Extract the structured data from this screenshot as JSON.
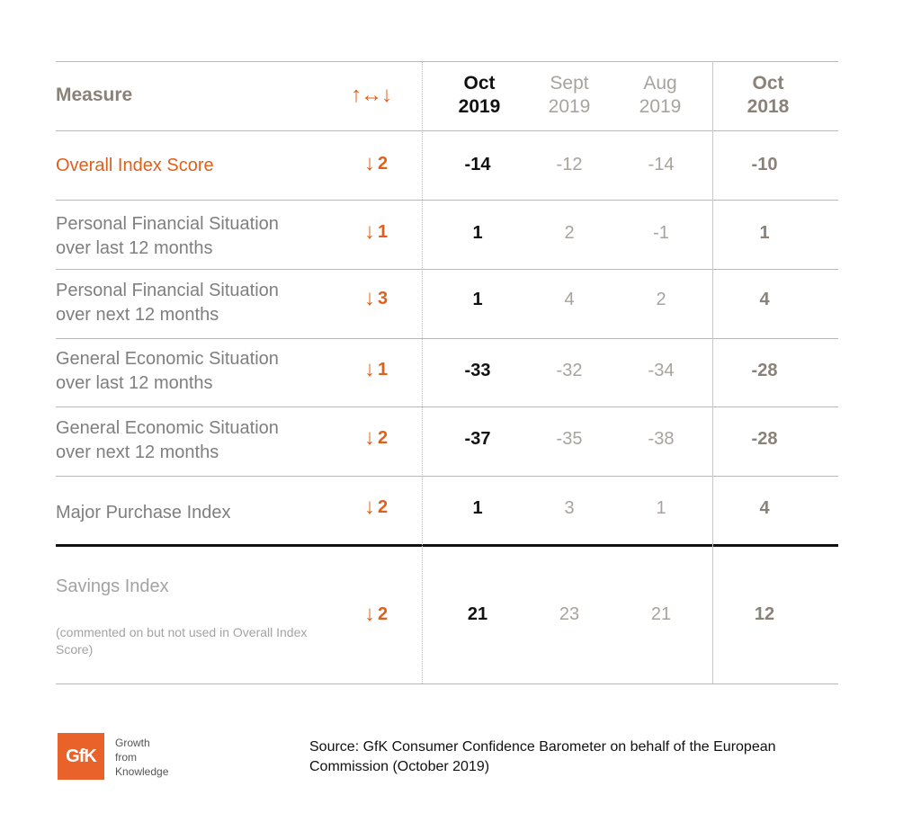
{
  "header": {
    "measure": "Measure",
    "change_icon": "↑↔↓",
    "columns": [
      {
        "line1": "Oct",
        "line2": "2019"
      },
      {
        "line1": "Sept",
        "line2": "2019"
      },
      {
        "line1": "Aug",
        "line2": "2019"
      },
      {
        "line1": "Oct",
        "line2": "2018"
      }
    ]
  },
  "rows": [
    {
      "label1": "Overall Index Score",
      "label2": "",
      "arrow": "↓",
      "change": "2",
      "values": [
        "-14",
        "-12",
        "-14",
        "-10"
      ]
    },
    {
      "label1": "Personal Financial Situation",
      "label2": "over last 12 months",
      "arrow": "↓",
      "change": "1",
      "values": [
        "1",
        "2",
        "-1",
        "1"
      ]
    },
    {
      "label1": "Personal Financial Situation",
      "label2": "over next 12 months",
      "arrow": "↓",
      "change": "3",
      "values": [
        "1",
        "4",
        "2",
        "4"
      ]
    },
    {
      "label1": "General Economic Situation",
      "label2": "over last 12 months",
      "arrow": "↓",
      "change": "1",
      "values": [
        "-33",
        "-32",
        "-34",
        "-28"
      ]
    },
    {
      "label1": "General Economic Situation",
      "label2": "over next 12 months",
      "arrow": "↓",
      "change": "2",
      "values": [
        "-37",
        "-35",
        "-38",
        "-28"
      ]
    },
    {
      "label1": "Major Purchase Index",
      "label2": "",
      "arrow": "↓",
      "change": "2",
      "values": [
        "1",
        "3",
        "1",
        "4"
      ]
    }
  ],
  "savings": {
    "label": "Savings Index",
    "note": "(commented on but not used in Overall Index Score)",
    "arrow": "↓",
    "change": "2",
    "values": [
      "21",
      "23",
      "21",
      "12"
    ]
  },
  "footer": {
    "logo_text": "GfK",
    "tagline": [
      "Growth",
      "from",
      "Knowledge"
    ],
    "source": "Source: GfK Consumer Confidence Barometer on behalf of the European Commission (October 2019)"
  },
  "colors": {
    "accent": "#e0601a",
    "logo_bg": "#e8622a"
  }
}
